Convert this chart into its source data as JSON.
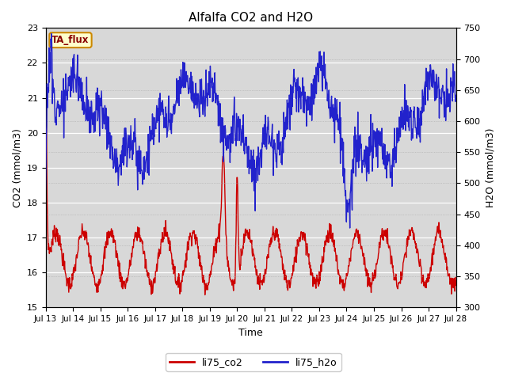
{
  "title": "Alfalfa CO2 and H2O",
  "xlabel": "Time",
  "ylabel_left": "CO2 (mmol/m3)",
  "ylabel_right": "H2O (mmol/m3)",
  "ylim_left": [
    15.0,
    23.0
  ],
  "ylim_right": [
    300,
    750
  ],
  "yticks_left": [
    15.0,
    16.0,
    17.0,
    18.0,
    19.0,
    20.0,
    21.0,
    22.0,
    23.0
  ],
  "yticks_right": [
    300,
    350,
    400,
    450,
    500,
    550,
    600,
    650,
    700,
    750
  ],
  "xtick_labels": [
    "Jul 13",
    "Jul 14",
    "Jul 15",
    "Jul 16",
    "Jul 17",
    "Jul 18",
    "Jul 19",
    "Jul 20",
    "Jul 21",
    "Jul 22",
    "Jul 23",
    "Jul 24",
    "Jul 25",
    "Jul 26",
    "Jul 27",
    "Jul 28"
  ],
  "legend_labels": [
    "li75_co2",
    "li75_h2o"
  ],
  "legend_colors": [
    "#cc0000",
    "#2222cc"
  ],
  "annotation_text": "TA_flux",
  "annotation_bg": "#ffffcc",
  "annotation_border": "#cc8800",
  "fig_bg": "#ffffff",
  "plot_bg": "#d8d8d8",
  "grid_color": "#ffffff",
  "line_color_co2": "#cc0000",
  "line_color_h2o": "#2222cc",
  "line_width": 1.0,
  "n_days": 15,
  "pts_per_day": 72,
  "seed": 7
}
